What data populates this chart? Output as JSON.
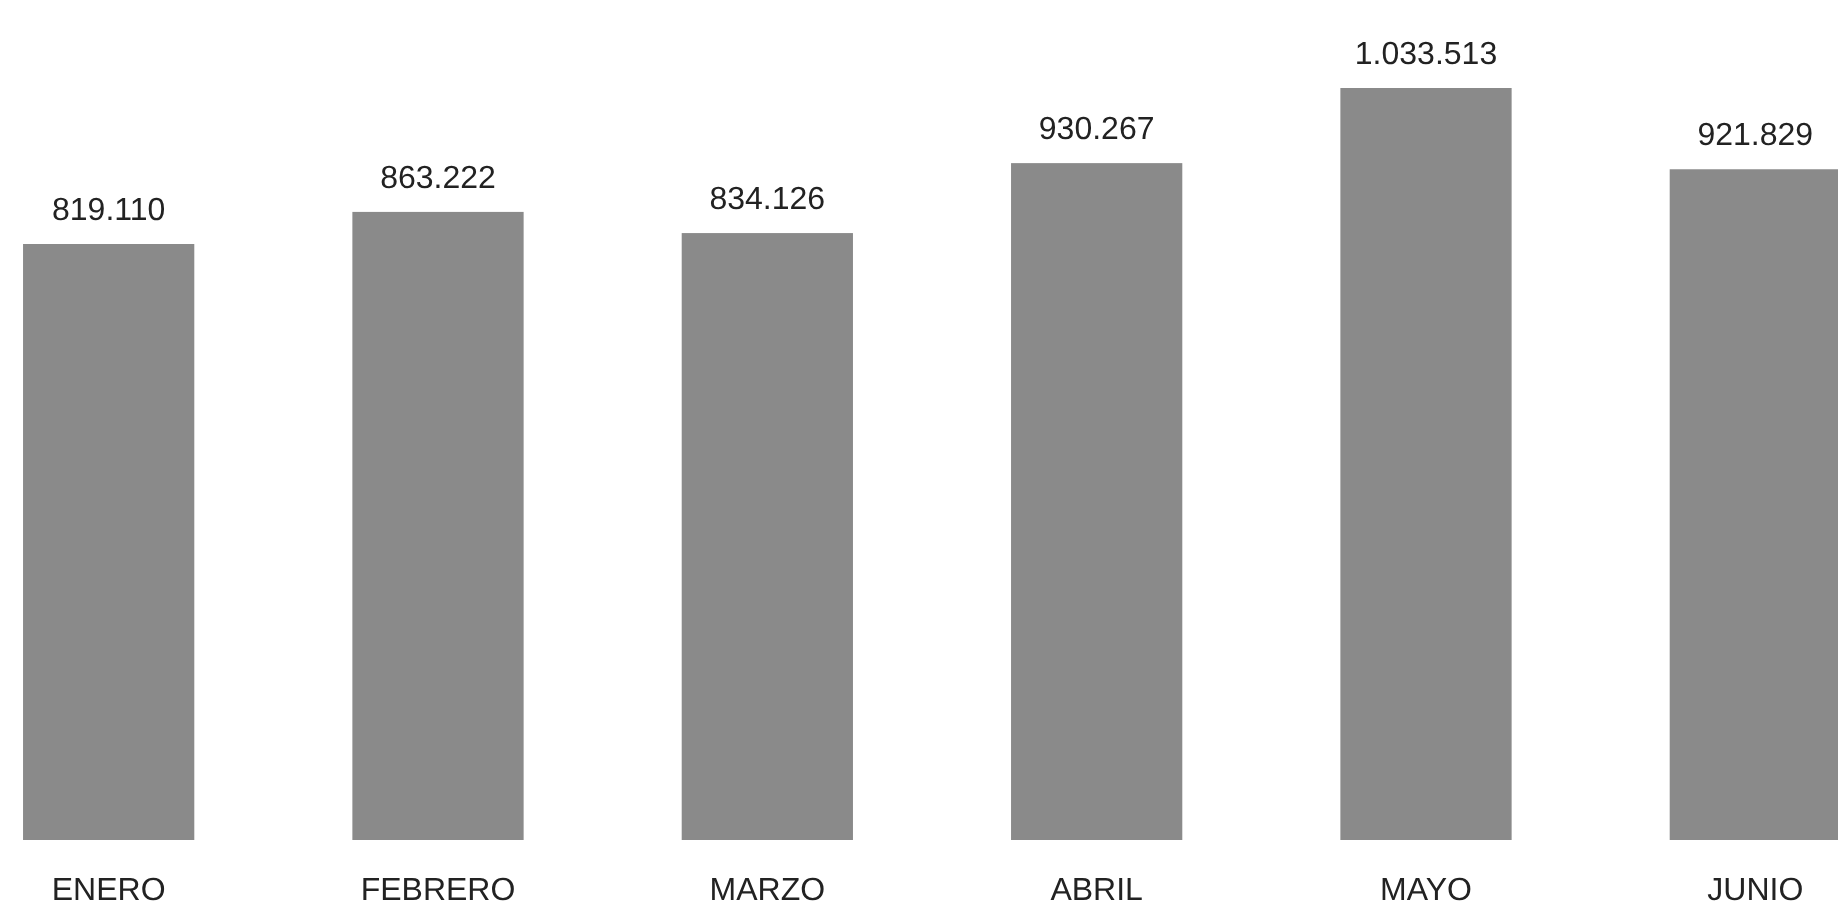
{
  "chart_data": {
    "type": "bar",
    "categories": [
      "ENERO",
      "FEBRERO",
      "MARZO",
      "ABRIL",
      "MAYO",
      "JUNIO"
    ],
    "values": [
      819110,
      863222,
      834126,
      930267,
      1033513,
      921829
    ],
    "value_labels": [
      "819.110",
      "863.222",
      "834.126",
      "930.267",
      "1.033.513",
      "921.829"
    ],
    "color": "#8a8a8a"
  }
}
